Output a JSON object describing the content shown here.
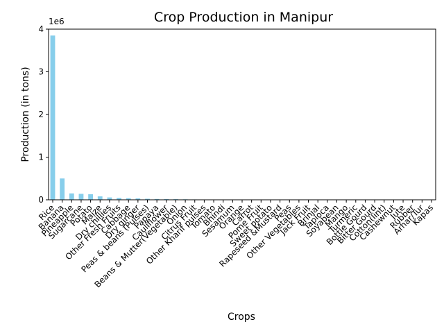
{
  "chart_data": {
    "type": "bar",
    "title": "Crop Production in Manipur",
    "xlabel": "Crops",
    "ylabel": "Production (in tons)",
    "y_offset_label": "1e6",
    "y_scale": 1000000,
    "ylim": [
      0,
      4000000
    ],
    "yticks": [
      0,
      1000000,
      2000000,
      3000000,
      4000000
    ],
    "ytick_labels": [
      "0",
      "1",
      "2",
      "3",
      "4"
    ],
    "grid": false,
    "legend": "none",
    "bar_color": "#87CEEB",
    "categories": [
      "Rice",
      "Banana",
      "Pineapple",
      "Sugarcane",
      "Potato",
      "Maize",
      "Dry chillies",
      "Other Fresh Fruits",
      "Cabbage",
      "Dry ginger",
      "Peas & beans (Pulses)",
      "Papaya",
      "Cauliflower",
      "Beans & Mutter(Vegetable)",
      "Onion",
      "Citrus Fruit",
      "Other Kharif pulses",
      "Tomato",
      "Bhindi",
      "Sesamum",
      "Orange",
      "Carrot",
      "Pome Fruit",
      "Sweet potato",
      "Rapeseed &Mustard",
      "Peas",
      "Other Vegetables",
      "Jack Fruit",
      "Brinjal",
      "Tapioca",
      "Soyabean",
      "Mango",
      "Turmeric",
      "Bottle Gourd",
      "Bitter Gourd",
      "Cotton(lint)",
      "Cashewnut",
      "Jute",
      "Rubber",
      "Arhar/Tur",
      "Kapas"
    ],
    "values": [
      3850000,
      500000,
      150000,
      140000,
      130000,
      80000,
      55000,
      45000,
      38000,
      33000,
      25000,
      20000,
      17000,
      15000,
      12000,
      9000,
      7000,
      6000,
      5000,
      4000,
      3500,
      3000,
      2500,
      2000,
      1800,
      1500,
      1200,
      1000,
      900,
      800,
      700,
      600,
      500,
      400,
      350,
      300,
      250,
      200,
      150,
      100,
      50
    ]
  }
}
